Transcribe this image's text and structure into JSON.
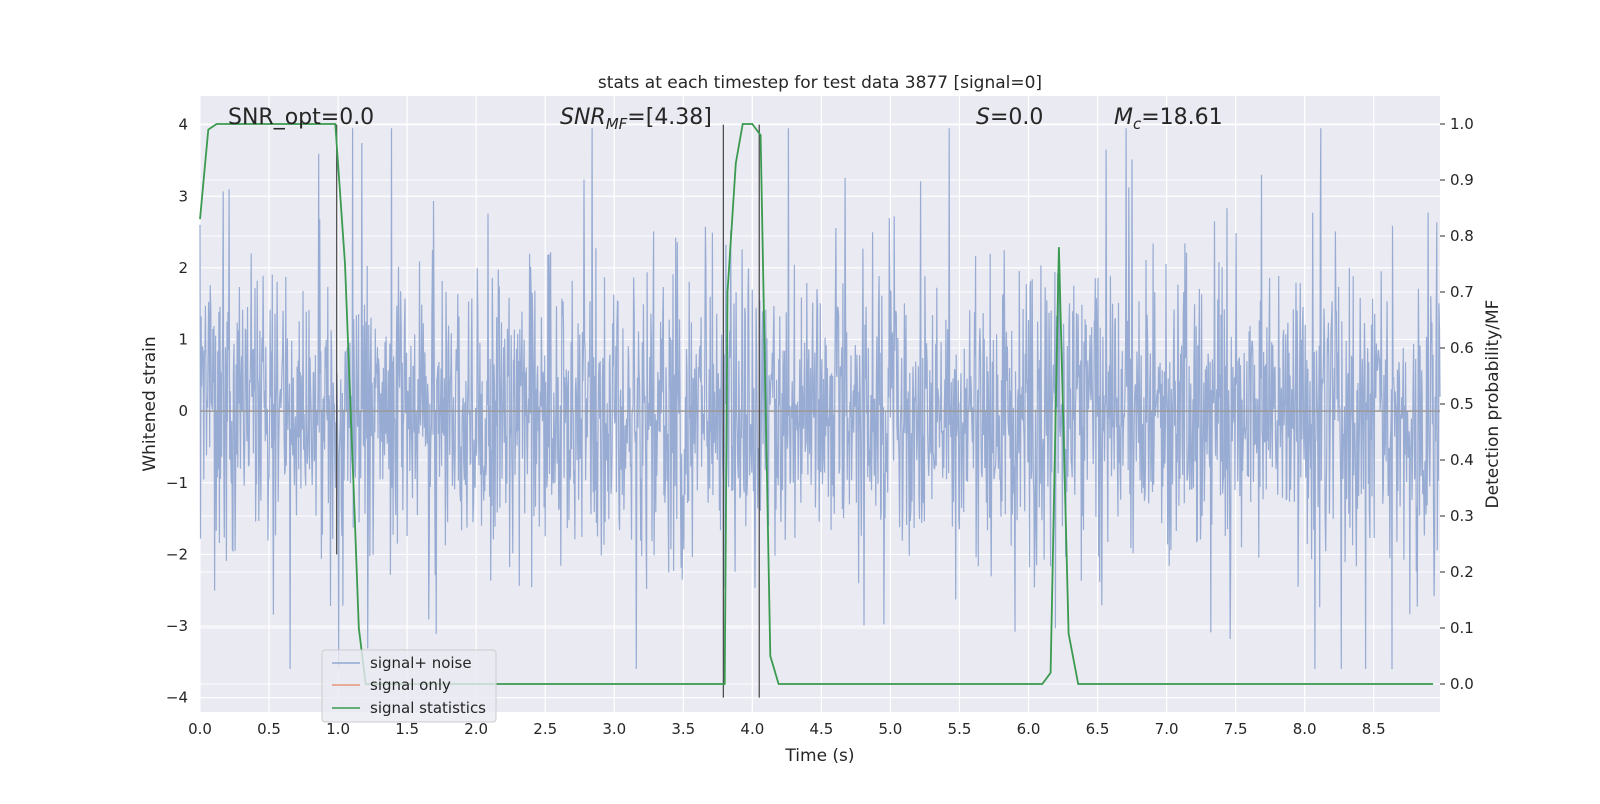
{
  "chart_data": {
    "type": "line",
    "title": "stats at each timestep for test data 3877 [signal=0]",
    "xlabel": "Time (s)",
    "ylabel_left": "Whitened strain",
    "ylabel_right": "Detection probability/MF",
    "xlim": [
      0.0,
      8.98
    ],
    "ylim_left": [
      -4.2,
      4.4
    ],
    "ylim_right": [
      -0.05,
      1.05
    ],
    "x_ticks": [
      "0.0",
      "0.5",
      "1.0",
      "1.5",
      "2.0",
      "2.5",
      "3.0",
      "3.5",
      "4.0",
      "4.5",
      "5.0",
      "5.5",
      "6.0",
      "6.5",
      "7.0",
      "7.5",
      "8.0",
      "8.5"
    ],
    "y_ticks_left": [
      "−4",
      "−3",
      "−2",
      "−1",
      "0",
      "1",
      "2",
      "3",
      "4"
    ],
    "y_ticks_right": [
      "0.0",
      "0.1",
      "0.2",
      "0.3",
      "0.4",
      "0.5",
      "0.6",
      "0.7",
      "0.8",
      "0.9",
      "1.0"
    ],
    "grid": true,
    "legend_position": "lower-left",
    "annotations": {
      "snr_opt": "SNR_opt=0.0",
      "snr_mf_main": "SNR",
      "snr_mf_sub": "MF",
      "snr_mf_value": "=[4.38]",
      "s_symbol": "S",
      "s_value": "=0.0",
      "mc_main": "M",
      "mc_sub": "c",
      "mc_value": "=18.61"
    },
    "series": [
      {
        "name": "signal+ noise",
        "axis": "left",
        "color": "#92a8d1",
        "description_range": [
          -3.6,
          3.95
        ],
        "envelope_typical": [
          -2.3,
          2.3
        ]
      },
      {
        "name": "signal only",
        "axis": "left",
        "color": "#e8967a",
        "values_constant": 0.0
      },
      {
        "name": "signal statistics",
        "axis": "right",
        "color": "#3a9a4f",
        "x": [
          0.0,
          0.06,
          0.12,
          0.5,
          0.9,
          0.98,
          1.05,
          1.12,
          1.15,
          1.2,
          3.8,
          3.82,
          3.88,
          3.93,
          4.0,
          4.06,
          4.13,
          4.19,
          4.25,
          6.1,
          6.16,
          6.22,
          6.29,
          6.36,
          6.42,
          8.93
        ],
        "y": [
          0.83,
          0.99,
          1.0,
          1.0,
          1.0,
          1.0,
          0.75,
          0.3,
          0.1,
          0.0,
          0.0,
          0.7,
          0.93,
          1.0,
          1.0,
          0.98,
          0.05,
          0.0,
          0.0,
          0.0,
          0.02,
          0.78,
          0.09,
          0.0,
          0.0,
          0.0
        ]
      }
    ],
    "vertical_markers": [
      {
        "x": 0.99,
        "y_from": -2.0,
        "y_to": 4.0
      },
      {
        "x": 3.79,
        "y_from": -4.0,
        "y_to": 4.0
      },
      {
        "x": 4.05,
        "y_from": -4.0,
        "y_to": 4.0
      }
    ]
  }
}
